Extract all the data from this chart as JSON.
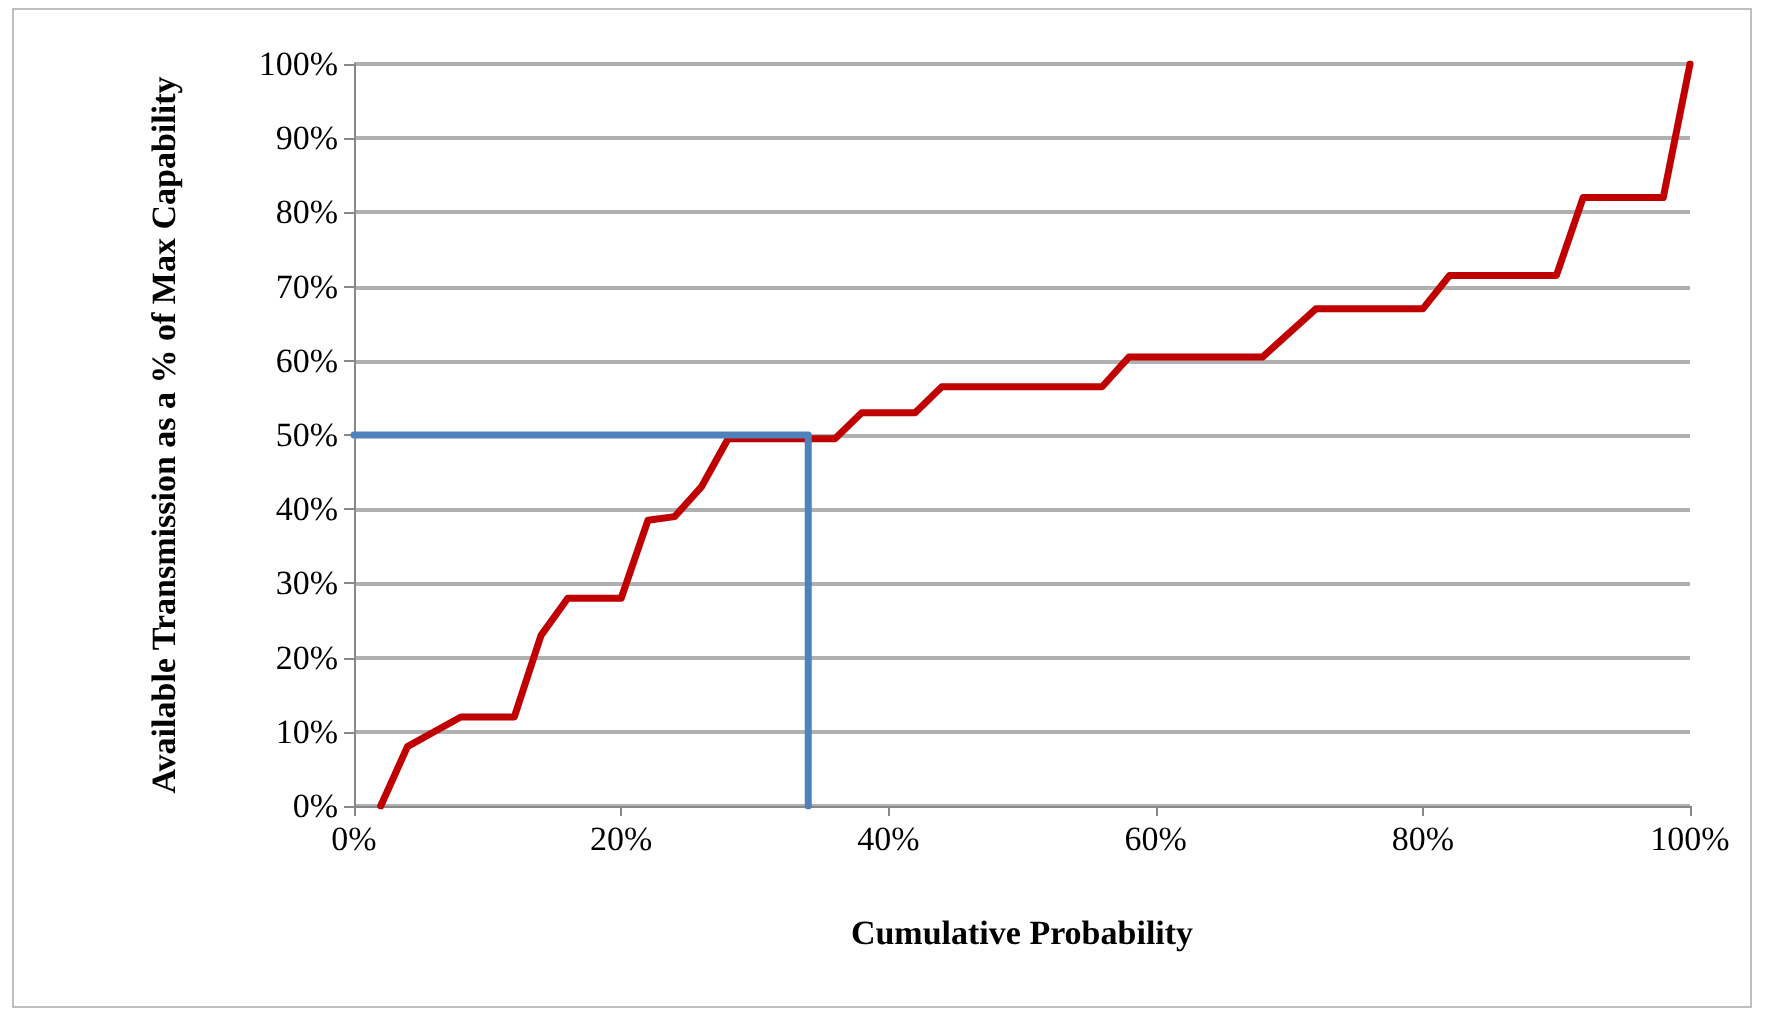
{
  "chart_data": {
    "type": "line",
    "xlabel": "Cumulative Probability",
    "ylabel": "Available Transmission as a % of Max Capability",
    "grid": "y",
    "marker": "none",
    "line_style": "solid",
    "xlim": [
      0,
      100
    ],
    "xticks": [
      {
        "value": 0,
        "label": "0%"
      },
      {
        "value": 20,
        "label": "20%"
      },
      {
        "value": 40,
        "label": "40%"
      },
      {
        "value": 60,
        "label": "60%"
      },
      {
        "value": 80,
        "label": "80%"
      },
      {
        "value": 100,
        "label": "100%"
      }
    ],
    "ylim": [
      0,
      100
    ],
    "yticks": [
      {
        "value": 0,
        "label": "0%"
      },
      {
        "value": 10,
        "label": "10%"
      },
      {
        "value": 20,
        "label": "20%"
      },
      {
        "value": 30,
        "label": "30%"
      },
      {
        "value": 40,
        "label": "40%"
      },
      {
        "value": 50,
        "label": "50%"
      },
      {
        "value": 60,
        "label": "60%"
      },
      {
        "value": 70,
        "label": "70%"
      },
      {
        "value": 80,
        "label": "80%"
      },
      {
        "value": 90,
        "label": "90%"
      },
      {
        "value": 100,
        "label": "100%"
      }
    ],
    "series": [
      {
        "color": "#c00000",
        "x": [
          2,
          4,
          6,
          8,
          12,
          14,
          16,
          20,
          22,
          24,
          26,
          28,
          36,
          38,
          42,
          44,
          56,
          58,
          68,
          72,
          80,
          82,
          90,
          92,
          98,
          100
        ],
        "values": [
          0,
          8,
          10,
          12,
          12,
          23,
          28,
          28,
          38.5,
          39,
          43,
          49.5,
          49.5,
          53,
          53,
          56.5,
          56.5,
          60.5,
          60.5,
          67,
          67,
          71.5,
          71.5,
          82,
          82,
          100
        ]
      },
      {
        "color": "#4f81bd",
        "x": [
          0,
          34,
          34
        ],
        "values": [
          50,
          50,
          0
        ]
      }
    ]
  }
}
